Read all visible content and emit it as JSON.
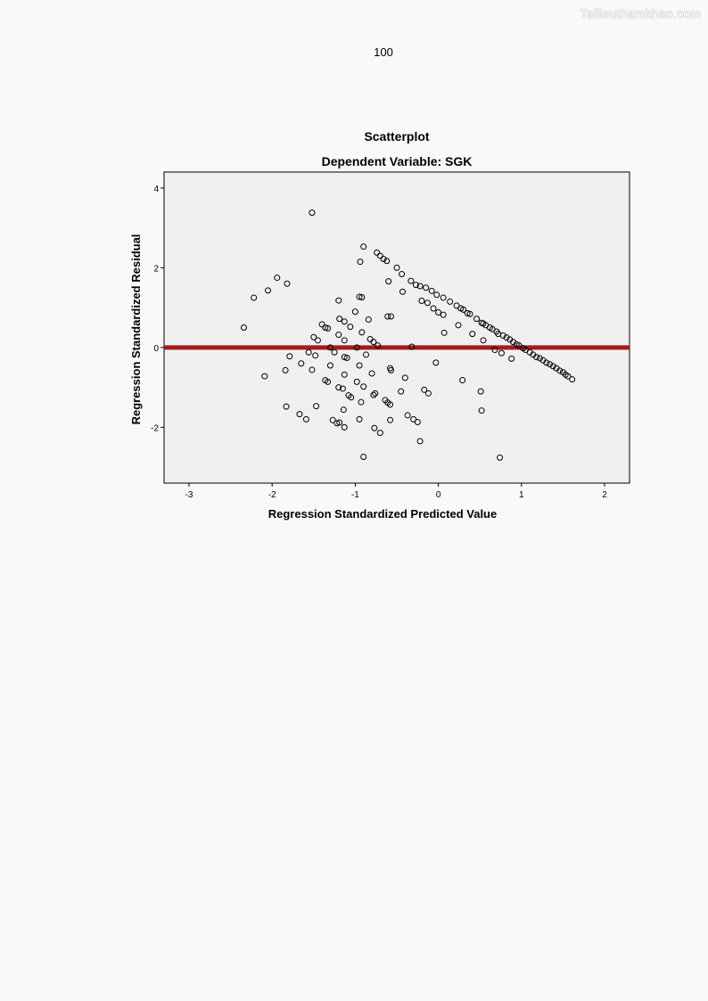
{
  "watermark": "Tailieuthamkhao.com",
  "page_number": "100",
  "chart_data": {
    "type": "scatter",
    "title": "Scatterplot",
    "subtitle": "Dependent Variable: SGK",
    "xlabel": "Regression Standardized Predicted Value",
    "ylabel": "Regression Standardized Residual",
    "xlim": [
      -3.3,
      2.3
    ],
    "ylim": [
      -3.4,
      4.4
    ],
    "xticks": [
      -3,
      -2,
      -1,
      0,
      1,
      2
    ],
    "yticks": [
      -2,
      0,
      2,
      4
    ],
    "xticklabels": [
      "-3",
      "-2",
      "-1",
      "0",
      "1",
      "2"
    ],
    "yticklabels": [
      "-2",
      "0",
      "2",
      "4"
    ],
    "grid": false,
    "reference_line": {
      "y": 0,
      "color": "#a31c1c"
    },
    "plot_background": "#f0f0f0",
    "marker": "open-circle",
    "points": [
      [
        -1.52,
        3.38
      ],
      [
        -2.34,
        0.5
      ],
      [
        -2.22,
        1.25
      ],
      [
        -2.05,
        1.43
      ],
      [
        -1.94,
        1.75
      ],
      [
        -1.82,
        1.6
      ],
      [
        -2.09,
        -0.72
      ],
      [
        -1.84,
        -0.57
      ],
      [
        -1.79,
        -0.22
      ],
      [
        -1.65,
        -0.4
      ],
      [
        -1.56,
        -0.12
      ],
      [
        -1.5,
        0.26
      ],
      [
        -1.48,
        -0.2
      ],
      [
        -1.45,
        0.18
      ],
      [
        -1.4,
        0.58
      ],
      [
        -1.36,
        0.5
      ],
      [
        -1.33,
        0.48
      ],
      [
        -1.3,
        0.0
      ],
      [
        -1.52,
        -0.56
      ],
      [
        -1.36,
        -0.82
      ],
      [
        -1.33,
        -0.86
      ],
      [
        -1.3,
        -0.45
      ],
      [
        -1.25,
        -0.12
      ],
      [
        -1.2,
        0.32
      ],
      [
        -1.19,
        0.72
      ],
      [
        -1.2,
        1.18
      ],
      [
        -1.13,
        0.65
      ],
      [
        -1.13,
        0.18
      ],
      [
        -1.13,
        -0.24
      ],
      [
        -1.13,
        -0.68
      ],
      [
        -1.15,
        -1.03
      ],
      [
        -1.2,
        -1.0
      ],
      [
        -1.1,
        -0.26
      ],
      [
        -1.08,
        -1.2
      ],
      [
        -1.06,
        0.52
      ],
      [
        -1.0,
        0.9
      ],
      [
        -0.98,
        0.0
      ],
      [
        -0.95,
        -0.45
      ],
      [
        -0.98,
        -0.86
      ],
      [
        -0.95,
        1.27
      ],
      [
        -0.92,
        1.26
      ],
      [
        -0.9,
        2.53
      ],
      [
        -0.94,
        2.15
      ],
      [
        -0.92,
        0.38
      ],
      [
        -0.9,
        -0.98
      ],
      [
        -0.93,
        -1.37
      ],
      [
        -0.87,
        -0.18
      ],
      [
        -0.84,
        0.7
      ],
      [
        -0.82,
        0.21
      ],
      [
        -0.8,
        -0.65
      ],
      [
        -0.78,
        -1.19
      ],
      [
        -0.76,
        -1.15
      ],
      [
        -0.74,
        2.38
      ],
      [
        -0.7,
        2.3
      ],
      [
        -0.66,
        2.22
      ],
      [
        -0.62,
        2.17
      ],
      [
        -0.6,
        1.66
      ],
      [
        -0.61,
        0.78
      ],
      [
        -0.58,
        -0.52
      ],
      [
        -0.57,
        -0.57
      ],
      [
        -0.64,
        -1.32
      ],
      [
        -0.61,
        -1.38
      ],
      [
        -0.58,
        -1.43
      ],
      [
        -0.73,
        0.05
      ],
      [
        -0.78,
        0.14
      ],
      [
        -0.7,
        -2.14
      ],
      [
        -0.77,
        -2.02
      ],
      [
        -0.9,
        -2.74
      ],
      [
        -0.95,
        -1.8
      ],
      [
        -1.05,
        -1.25
      ],
      [
        -1.19,
        -1.88
      ],
      [
        -1.22,
        -1.9
      ],
      [
        -1.27,
        -1.82
      ],
      [
        -1.14,
        -1.56
      ],
      [
        -1.13,
        -2.0
      ],
      [
        -1.47,
        -1.47
      ],
      [
        -1.59,
        -1.8
      ],
      [
        -1.67,
        -1.67
      ],
      [
        -1.83,
        -1.48
      ],
      [
        -0.5,
        2.0
      ],
      [
        -0.44,
        1.84
      ],
      [
        -0.43,
        1.4
      ],
      [
        -0.33,
        1.67
      ],
      [
        -0.27,
        1.57
      ],
      [
        -0.22,
        1.54
      ],
      [
        -0.15,
        1.5
      ],
      [
        -0.08,
        1.42
      ],
      [
        -0.02,
        1.32
      ],
      [
        0.06,
        1.25
      ],
      [
        0.14,
        1.15
      ],
      [
        0.22,
        1.05
      ],
      [
        0.3,
        0.95
      ],
      [
        0.38,
        0.84
      ],
      [
        0.46,
        0.72
      ],
      [
        0.54,
        0.6
      ],
      [
        0.62,
        0.5
      ],
      [
        0.7,
        0.4
      ],
      [
        0.78,
        0.3
      ],
      [
        0.86,
        0.2
      ],
      [
        0.94,
        0.08
      ],
      [
        1.02,
        -0.02
      ],
      [
        1.1,
        -0.12
      ],
      [
        1.18,
        -0.24
      ],
      [
        1.26,
        -0.32
      ],
      [
        1.34,
        -0.42
      ],
      [
        1.42,
        -0.52
      ],
      [
        1.5,
        -0.62
      ],
      [
        1.56,
        -0.72
      ],
      [
        1.61,
        -0.8
      ],
      [
        -0.2,
        1.17
      ],
      [
        -0.13,
        1.12
      ],
      [
        -0.06,
        0.98
      ],
      [
        0.0,
        0.88
      ],
      [
        0.06,
        0.82
      ],
      [
        0.27,
        0.98
      ],
      [
        0.35,
        0.86
      ],
      [
        0.52,
        0.62
      ],
      [
        0.57,
        0.56
      ],
      [
        0.65,
        0.46
      ],
      [
        0.72,
        0.34
      ],
      [
        0.82,
        0.25
      ],
      [
        0.9,
        0.14
      ],
      [
        0.97,
        0.05
      ],
      [
        1.05,
        -0.06
      ],
      [
        1.14,
        -0.18
      ],
      [
        1.22,
        -0.27
      ],
      [
        1.3,
        -0.38
      ],
      [
        1.38,
        -0.47
      ],
      [
        1.46,
        -0.58
      ],
      [
        1.53,
        -0.68
      ],
      [
        0.24,
        0.56
      ],
      [
        0.07,
        0.37
      ],
      [
        0.41,
        0.34
      ],
      [
        0.54,
        0.18
      ],
      [
        0.68,
        -0.06
      ],
      [
        0.76,
        -0.14
      ],
      [
        0.88,
        -0.28
      ],
      [
        -0.32,
        0.02
      ],
      [
        -0.03,
        -0.38
      ],
      [
        -0.4,
        -0.76
      ],
      [
        -0.45,
        -1.1
      ],
      [
        -0.17,
        -1.06
      ],
      [
        -0.12,
        -1.15
      ],
      [
        -0.37,
        -1.7
      ],
      [
        -0.3,
        -1.8
      ],
      [
        -0.25,
        -1.87
      ],
      [
        -0.58,
        -1.82
      ],
      [
        -0.22,
        -2.35
      ],
      [
        0.29,
        -0.82
      ],
      [
        0.51,
        -1.1
      ],
      [
        0.52,
        -1.58
      ],
      [
        0.74,
        -2.76
      ],
      [
        -0.57,
        0.78
      ]
    ]
  }
}
